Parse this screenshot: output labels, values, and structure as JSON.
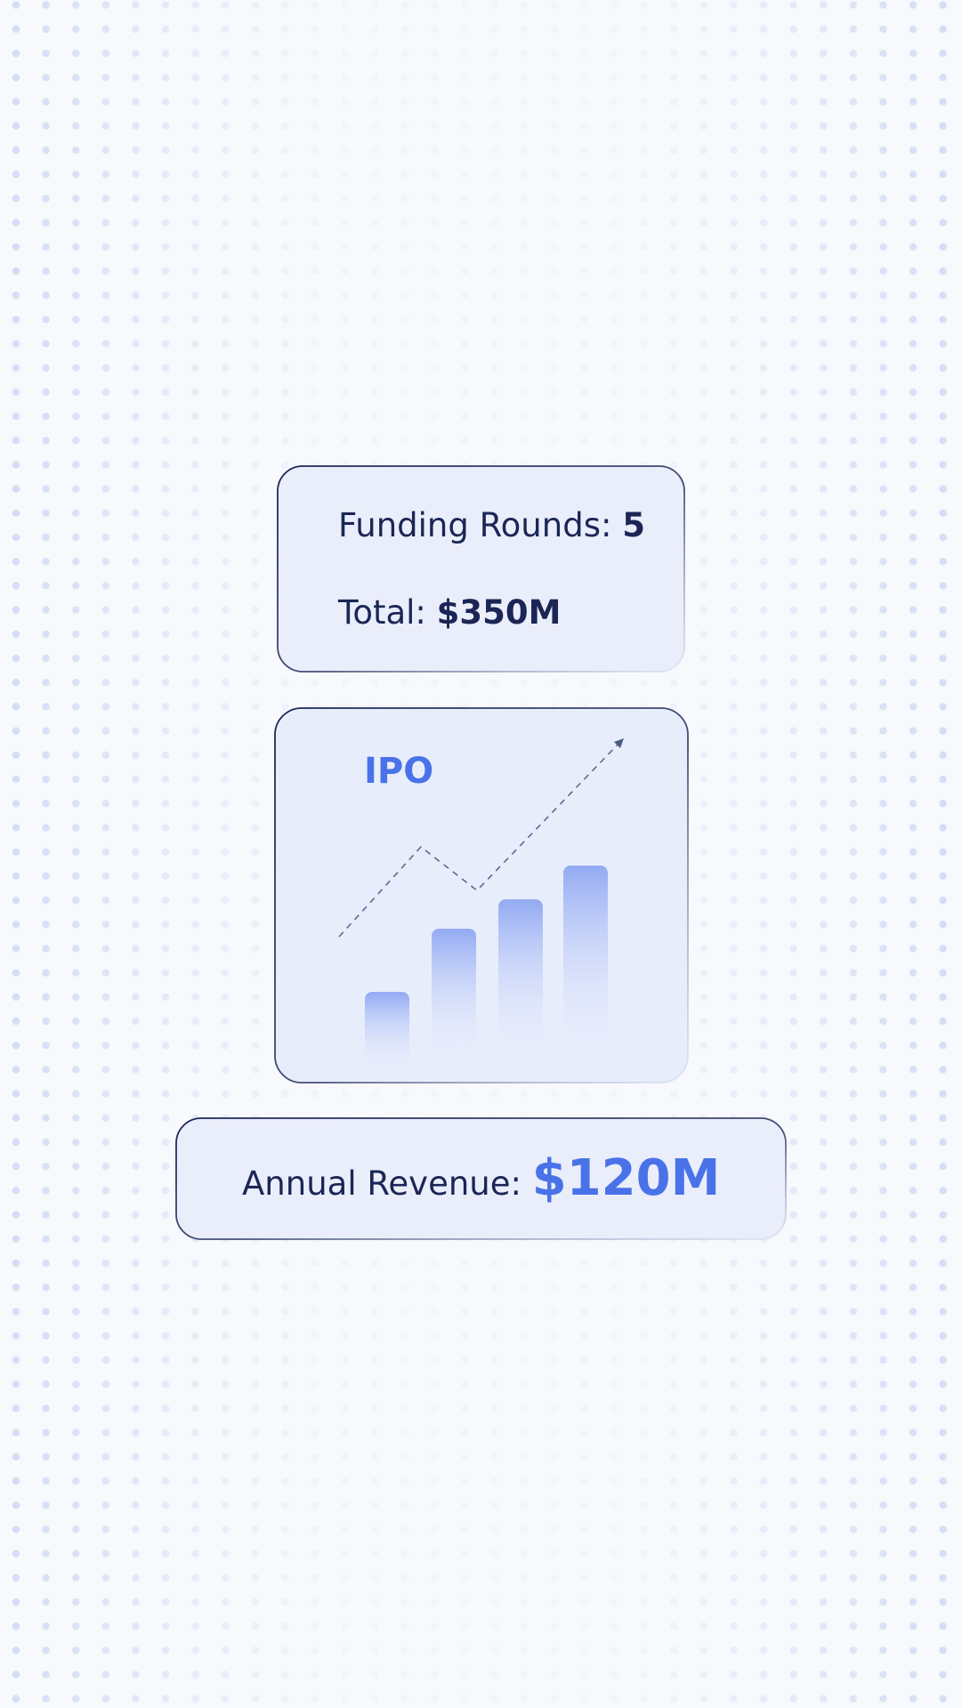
{
  "cards": [
    {
      "rows": [
        {
          "label": "Funding Rounds:",
          "value": "5"
        },
        {
          "label": "Total:",
          "value": "$350M"
        }
      ]
    },
    {
      "title": "IPO"
    },
    {
      "label": "Annual Revenue:",
      "value": "$120M"
    }
  ]
}
